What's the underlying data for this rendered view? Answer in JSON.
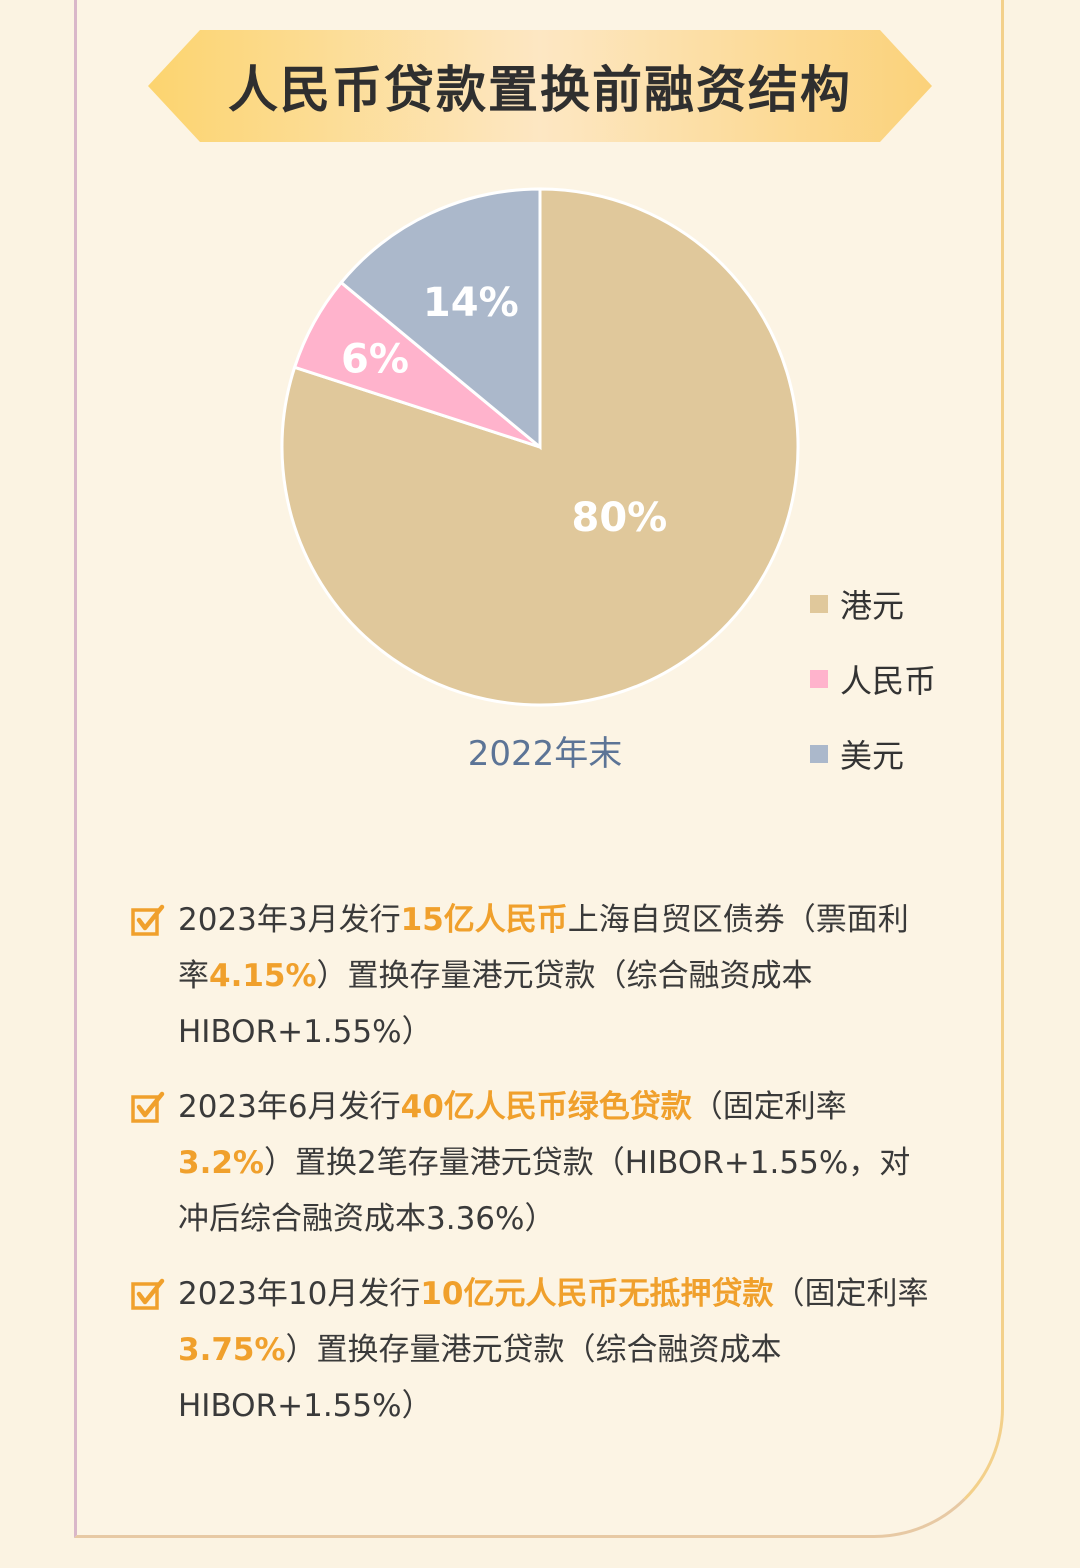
{
  "title": "人民币贷款置换前融资结构",
  "colors": {
    "hkd": "#e0c89b",
    "rmb": "#ffb3cc",
    "usd": "#abb8cb",
    "accent": "#f0a02c",
    "caption": "#5c7496"
  },
  "chart_data": {
    "type": "pie",
    "title": "人民币贷款置换前融资结构",
    "caption": "2022年末",
    "legend_position": "right",
    "slices": [
      {
        "name": "港元",
        "value": 80,
        "label": "80%"
      },
      {
        "name": "人民币",
        "value": 6,
        "label": "6%"
      },
      {
        "name": "美元",
        "value": 14,
        "label": "14%"
      }
    ]
  },
  "notes": [
    {
      "icon": "checkbox-checked-icon",
      "segments": [
        {
          "text": "2023年3月发行",
          "hl": false
        },
        {
          "text": "15亿人民币",
          "hl": true
        },
        {
          "text": "上海自贸区债券（票面利率",
          "hl": false
        },
        {
          "text": "4.15%",
          "hl": true
        },
        {
          "text": "）置换存量港元贷款（综合融资成本HIBOR+1.55%）",
          "hl": false
        }
      ]
    },
    {
      "icon": "checkbox-checked-icon",
      "segments": [
        {
          "text": "2023年6月发行",
          "hl": false
        },
        {
          "text": "40亿人民币绿色贷款",
          "hl": true
        },
        {
          "text": "（固定利率",
          "hl": false
        },
        {
          "text": "3.2%",
          "hl": true
        },
        {
          "text": "）置换2笔存量港元贷款（HIBOR+1.55%，对冲后综合融资成本3.36%）",
          "hl": false
        }
      ]
    },
    {
      "icon": "checkbox-checked-icon",
      "segments": [
        {
          "text": "2023年10月发行",
          "hl": false
        },
        {
          "text": "10亿元人民币无抵押贷款",
          "hl": true
        },
        {
          "text": "（固定利率",
          "hl": false
        },
        {
          "text": "3.75%",
          "hl": true
        },
        {
          "text": "）置换存量港元贷款（综合融资成本HIBOR+1.55%）",
          "hl": false
        }
      ]
    }
  ]
}
